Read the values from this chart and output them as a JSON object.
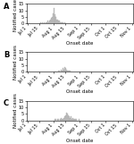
{
  "panels": [
    {
      "label": "A",
      "ylabel": "Notified cases",
      "xlabel": "Onset date",
      "ylim": [
        0,
        15
      ],
      "yticks": [
        0,
        5,
        10,
        15
      ],
      "bars": [
        0,
        0,
        0,
        0,
        0,
        0,
        0,
        0,
        0,
        0,
        0,
        0,
        0,
        0,
        0,
        1,
        0,
        0,
        1,
        0,
        1,
        0,
        1,
        1,
        2,
        1,
        2,
        3,
        4,
        5,
        8,
        12,
        7,
        6,
        5,
        3,
        3,
        2,
        2,
        1,
        1,
        1,
        1,
        0,
        1,
        0,
        0,
        0,
        0,
        0,
        0,
        0,
        0,
        0,
        0,
        0,
        0,
        0,
        0,
        0,
        0,
        0,
        0,
        0,
        0,
        0,
        0,
        0,
        0,
        0,
        0,
        0,
        0,
        0,
        0,
        0,
        0,
        0,
        0,
        0,
        0,
        0,
        0,
        0,
        0,
        0,
        0,
        0,
        0,
        0,
        0,
        0,
        0,
        0,
        0,
        0,
        0,
        0,
        0,
        0,
        0,
        0,
        0,
        0,
        0,
        0,
        0,
        0,
        0,
        0,
        0,
        0,
        0,
        0,
        0,
        0,
        0,
        0,
        0,
        0,
        0,
        0,
        0,
        0
      ]
    },
    {
      "label": "B",
      "ylabel": "Notified cases",
      "xlabel": "Onset date",
      "ylim": [
        0,
        15
      ],
      "yticks": [
        0,
        5,
        10,
        15
      ],
      "bars": [
        0,
        0,
        0,
        0,
        0,
        0,
        0,
        0,
        0,
        0,
        0,
        0,
        0,
        0,
        0,
        0,
        0,
        0,
        0,
        0,
        0,
        0,
        0,
        0,
        0,
        0,
        0,
        0,
        0,
        0,
        0,
        0,
        0,
        1,
        0,
        0,
        0,
        1,
        1,
        0,
        2,
        1,
        3,
        2,
        4,
        3,
        2,
        1,
        1,
        1,
        0,
        1,
        0,
        0,
        0,
        0,
        0,
        0,
        0,
        0,
        0,
        0,
        0,
        0,
        0,
        0,
        0,
        0,
        0,
        0,
        0,
        0,
        0,
        0,
        0,
        0,
        0,
        0,
        0,
        0,
        0,
        0,
        0,
        0,
        0,
        0,
        0,
        0,
        0,
        0,
        0,
        0,
        0,
        0,
        0,
        0,
        0,
        0,
        0,
        0,
        0,
        0,
        0,
        0,
        0,
        0,
        0,
        0,
        0,
        0,
        0,
        0,
        0,
        0,
        0,
        0,
        0,
        0,
        0,
        0,
        0,
        0,
        0,
        0
      ]
    },
    {
      "label": "C",
      "ylabel": "Notified cases",
      "xlabel": "Onset date",
      "ylim": [
        0,
        15
      ],
      "yticks": [
        0,
        5,
        10,
        15
      ],
      "bars": [
        0,
        0,
        0,
        0,
        0,
        0,
        0,
        0,
        0,
        0,
        0,
        0,
        0,
        0,
        0,
        0,
        0,
        0,
        0,
        0,
        0,
        0,
        0,
        0,
        0,
        0,
        0,
        0,
        0,
        0,
        0,
        0,
        1,
        0,
        1,
        0,
        1,
        1,
        0,
        1,
        2,
        1,
        1,
        2,
        3,
        4,
        6,
        5,
        4,
        3,
        2,
        2,
        3,
        1,
        2,
        1,
        1,
        1,
        1,
        0,
        0,
        1,
        0,
        0,
        0,
        0,
        0,
        0,
        0,
        0,
        0,
        0,
        0,
        0,
        0,
        0,
        0,
        0,
        0,
        0,
        0,
        0,
        0,
        0,
        0,
        0,
        0,
        0,
        0,
        0,
        0,
        0,
        0,
        0,
        0,
        0,
        0,
        0,
        0,
        0,
        0,
        0,
        0,
        0,
        0,
        0,
        0,
        0,
        0,
        0,
        0,
        0,
        0,
        0,
        0,
        0,
        0,
        0,
        0,
        0,
        0,
        0,
        0,
        0
      ]
    }
  ],
  "xtick_pos": [
    0,
    14,
    31,
    45,
    62,
    76,
    93,
    107,
    124
  ],
  "xtick_labels": [
    "Jul 1",
    "Jul 15",
    "Aug 1",
    "Aug 15",
    "Sep 1",
    "Sep 15",
    "Oct 1",
    "Oct 15",
    "Nov 1"
  ],
  "n_days": 124,
  "bar_color": "#cccccc",
  "bar_edgecolor": "#999999",
  "background_color": "#ffffff",
  "ylabel_fontsize": 4,
  "xlabel_fontsize": 4,
  "tick_fontsize": 3.5,
  "panel_label_fontsize": 6
}
